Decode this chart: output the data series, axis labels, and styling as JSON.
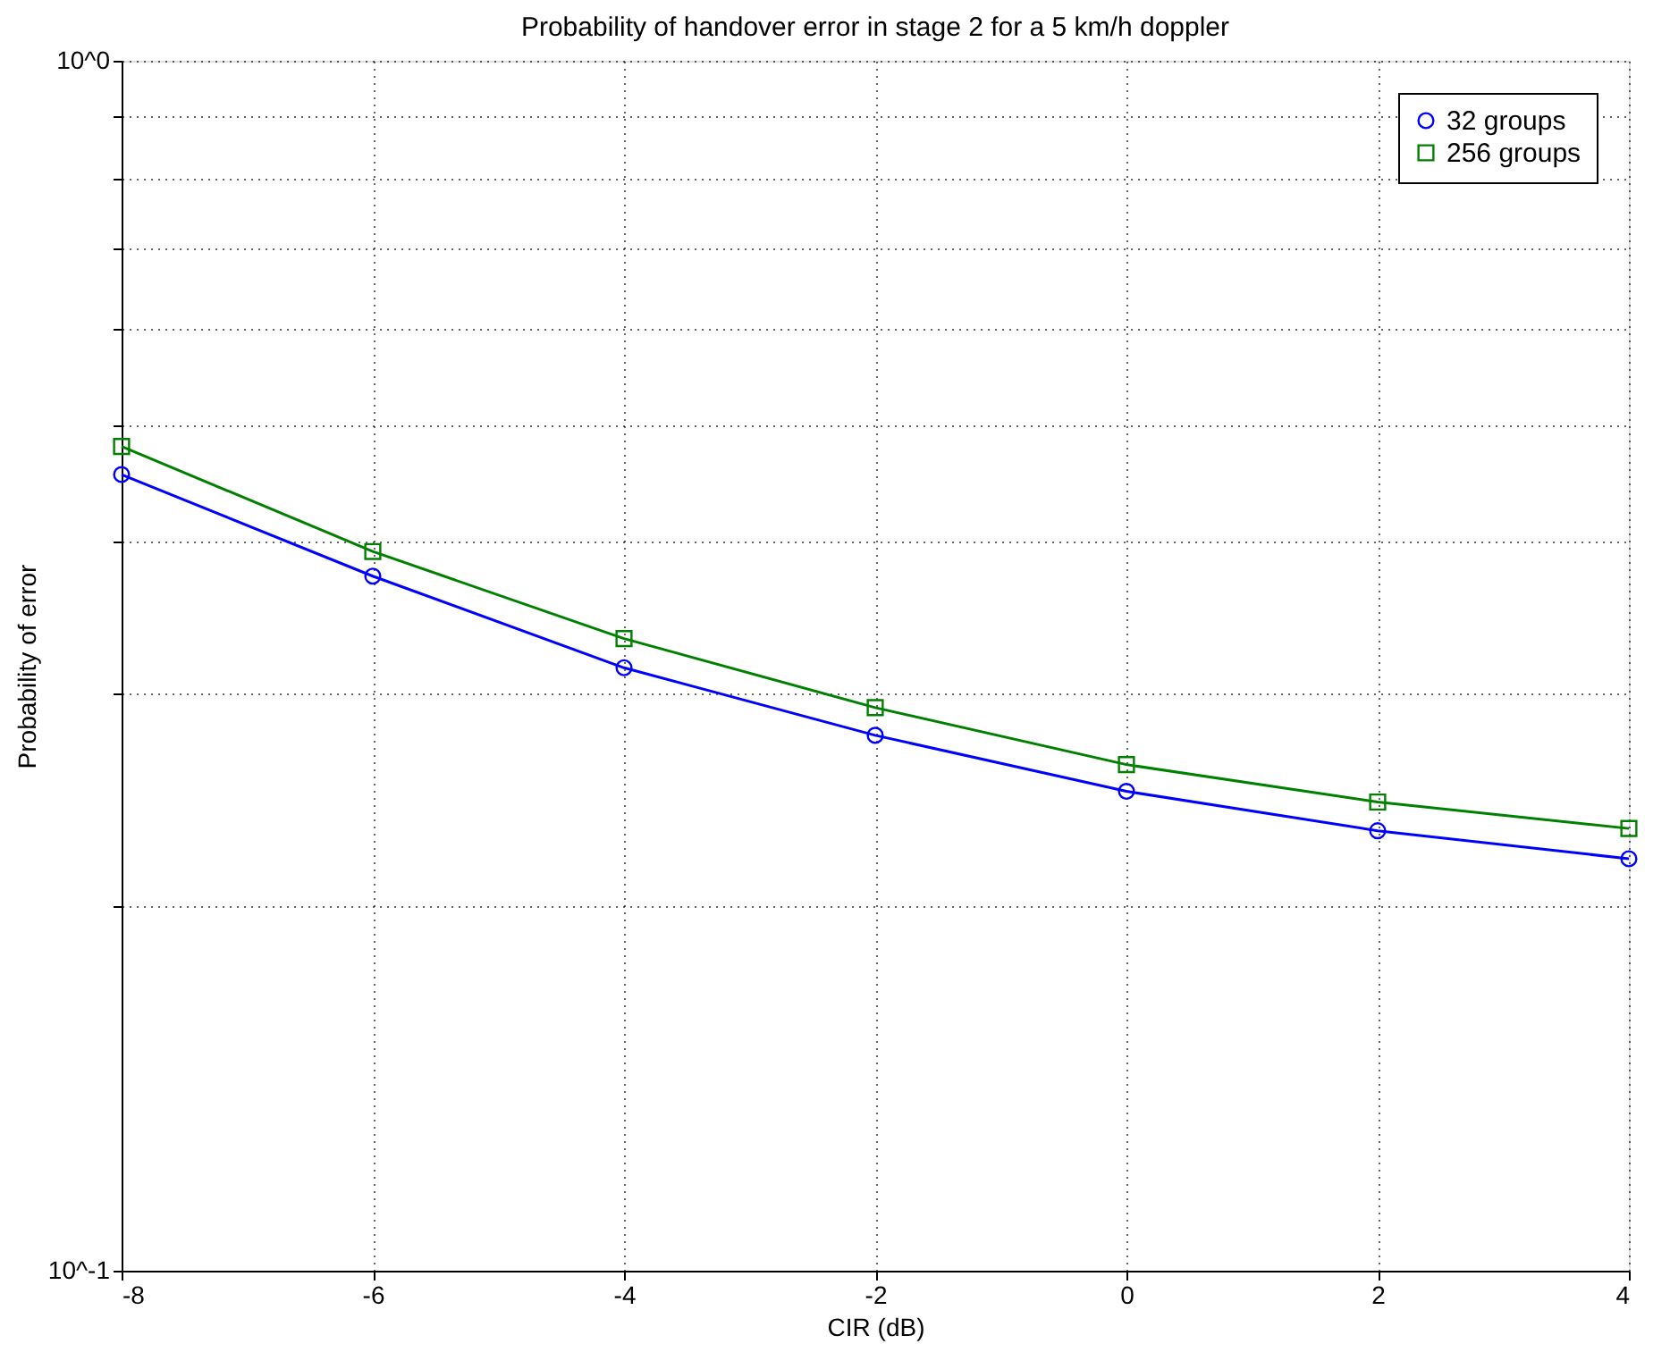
{
  "chart_data": {
    "type": "line",
    "title": "Probability of handover error in stage 2 for a 5 km/h doppler",
    "xlabel": "CIR (dB)",
    "ylabel": "Probability of error",
    "x": [
      -8,
      -6,
      -4,
      -2,
      0,
      2,
      4
    ],
    "series": [
      {
        "name": "32 groups",
        "color": "#0000ff",
        "marker": "circle",
        "values": [
          0.455,
          0.375,
          0.315,
          0.277,
          0.249,
          0.231,
          0.219
        ]
      },
      {
        "name": "256 groups",
        "color": "#008000",
        "marker": "square",
        "values": [
          0.48,
          0.393,
          0.333,
          0.292,
          0.262,
          0.244,
          0.232
        ]
      }
    ],
    "xlim": [
      -8,
      4
    ],
    "xticks": [
      -8,
      -6,
      -4,
      -2,
      0,
      2,
      4
    ],
    "ylim": [
      0.1,
      1
    ],
    "log": true,
    "yticks": [
      {
        "value": 0.1,
        "label": "10^-1"
      },
      {
        "value": 0.2,
        "label": null
      },
      {
        "value": 0.3,
        "label": null
      },
      {
        "value": 0.4,
        "label": null
      },
      {
        "value": 0.5,
        "label": null
      },
      {
        "value": 0.6,
        "label": null
      },
      {
        "value": 0.7,
        "label": null
      },
      {
        "value": 0.8,
        "label": null
      },
      {
        "value": 0.9,
        "label": null
      },
      {
        "value": 1,
        "label": "10^0"
      }
    ],
    "grid": true,
    "legend": "top right",
    "line_style": "solid"
  }
}
